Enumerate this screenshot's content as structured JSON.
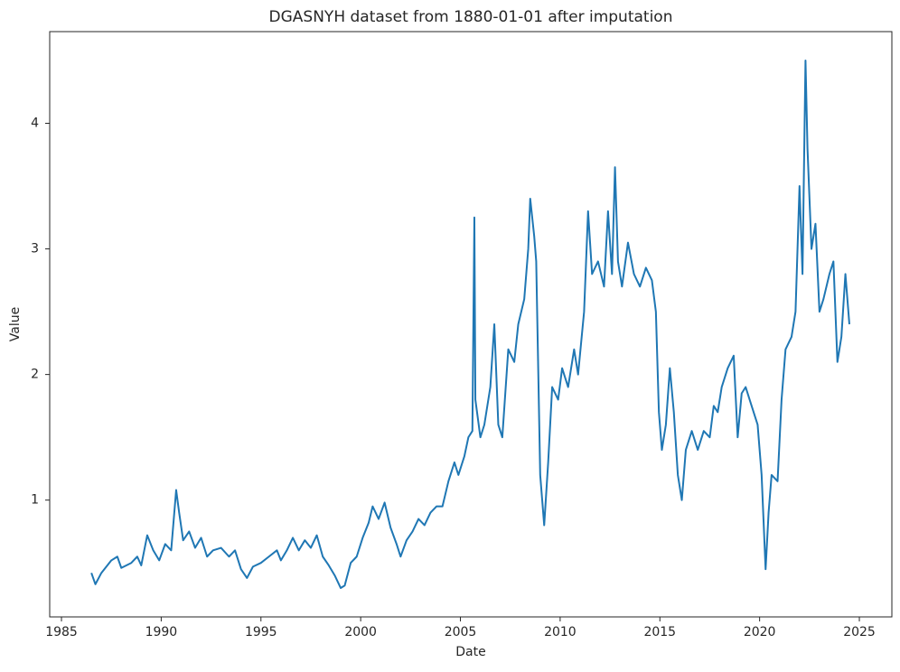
{
  "chart_data": {
    "type": "line",
    "title": "DGASNYH dataset from 1880-01-01 after imputation",
    "x_label": "Date",
    "y_label": "Value",
    "color": "#1f77b4",
    "grid": false,
    "xlim": [
      1984.41,
      2026.63
    ],
    "ylim": [
      0.07,
      4.73
    ],
    "xticks": [
      1985,
      1990,
      1995,
      2000,
      2005,
      2010,
      2015,
      2020,
      2025
    ],
    "yticks": [
      1,
      2,
      3,
      4
    ],
    "x": [
      1986.5,
      1986.7,
      1987.0,
      1987.5,
      1987.8,
      1988.0,
      1988.5,
      1988.8,
      1989.0,
      1989.3,
      1989.6,
      1989.9,
      1990.2,
      1990.5,
      1990.75,
      1990.9,
      1991.1,
      1991.4,
      1991.7,
      1992.0,
      1992.3,
      1992.6,
      1993.0,
      1993.4,
      1993.7,
      1994.0,
      1994.3,
      1994.6,
      1995.0,
      1995.4,
      1995.8,
      1996.0,
      1996.3,
      1996.6,
      1996.9,
      1997.2,
      1997.5,
      1997.8,
      1998.1,
      1998.4,
      1998.7,
      1999.0,
      1999.2,
      1999.5,
      1999.8,
      2000.1,
      2000.4,
      2000.6,
      2000.9,
      2001.2,
      2001.5,
      2001.8,
      2002.0,
      2002.3,
      2002.6,
      2002.9,
      2003.2,
      2003.5,
      2003.8,
      2004.1,
      2004.4,
      2004.7,
      2004.9,
      2005.2,
      2005.4,
      2005.6,
      2005.7,
      2005.75,
      2006.0,
      2006.2,
      2006.5,
      2006.7,
      2006.9,
      2007.1,
      2007.4,
      2007.7,
      2007.9,
      2008.2,
      2008.4,
      2008.5,
      2008.7,
      2008.8,
      2009.0,
      2009.1,
      2009.2,
      2009.4,
      2009.6,
      2009.9,
      2010.1,
      2010.4,
      2010.7,
      2010.9,
      2011.2,
      2011.4,
      2011.6,
      2011.9,
      2012.2,
      2012.4,
      2012.6,
      2012.75,
      2012.9,
      2013.1,
      2013.4,
      2013.7,
      2014.0,
      2014.3,
      2014.6,
      2014.8,
      2014.95,
      2015.1,
      2015.3,
      2015.5,
      2015.7,
      2015.9,
      2016.1,
      2016.3,
      2016.6,
      2016.9,
      2017.2,
      2017.5,
      2017.7,
      2017.9,
      2018.1,
      2018.4,
      2018.7,
      2018.9,
      2019.1,
      2019.3,
      2019.6,
      2019.9,
      2020.1,
      2020.3,
      2020.45,
      2020.6,
      2020.9,
      2021.1,
      2021.3,
      2021.6,
      2021.8,
      2022.0,
      2022.15,
      2022.3,
      2022.4,
      2022.6,
      2022.8,
      2023.0,
      2023.2,
      2023.5,
      2023.7,
      2023.9,
      2024.1,
      2024.3,
      2024.5
    ],
    "values": [
      0.42,
      0.33,
      0.42,
      0.52,
      0.55,
      0.46,
      0.5,
      0.55,
      0.48,
      0.72,
      0.6,
      0.52,
      0.65,
      0.6,
      1.08,
      0.9,
      0.68,
      0.75,
      0.62,
      0.7,
      0.55,
      0.6,
      0.62,
      0.55,
      0.6,
      0.45,
      0.38,
      0.47,
      0.5,
      0.55,
      0.6,
      0.52,
      0.6,
      0.7,
      0.6,
      0.68,
      0.62,
      0.72,
      0.55,
      0.48,
      0.4,
      0.3,
      0.32,
      0.5,
      0.55,
      0.7,
      0.82,
      0.95,
      0.85,
      0.98,
      0.78,
      0.65,
      0.55,
      0.68,
      0.75,
      0.85,
      0.8,
      0.9,
      0.95,
      0.95,
      1.15,
      1.3,
      1.2,
      1.35,
      1.5,
      1.55,
      3.25,
      1.8,
      1.5,
      1.6,
      1.9,
      2.4,
      1.6,
      1.5,
      2.2,
      2.1,
      2.4,
      2.6,
      3.0,
      3.4,
      3.1,
      2.9,
      1.2,
      1.0,
      0.8,
      1.3,
      1.9,
      1.8,
      2.05,
      1.9,
      2.2,
      2.0,
      2.5,
      3.3,
      2.8,
      2.9,
      2.7,
      3.3,
      2.8,
      3.65,
      2.9,
      2.7,
      3.05,
      2.8,
      2.7,
      2.85,
      2.75,
      2.5,
      1.7,
      1.4,
      1.6,
      2.05,
      1.7,
      1.2,
      1.0,
      1.4,
      1.55,
      1.4,
      1.55,
      1.5,
      1.75,
      1.7,
      1.9,
      2.05,
      2.15,
      1.5,
      1.85,
      1.9,
      1.75,
      1.6,
      1.2,
      0.45,
      0.9,
      1.2,
      1.15,
      1.8,
      2.2,
      2.3,
      2.5,
      3.5,
      2.8,
      4.5,
      3.8,
      3.0,
      3.2,
      2.5,
      2.6,
      2.8,
      2.9,
      2.1,
      2.3,
      2.8,
      2.4
    ]
  }
}
